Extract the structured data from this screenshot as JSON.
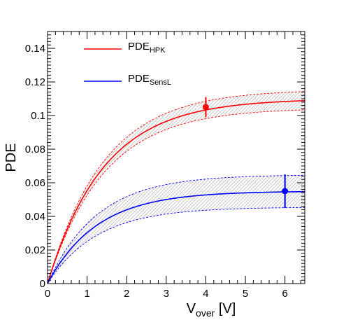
{
  "chart_data": {
    "type": "line",
    "xlabel": {
      "main": "V",
      "sub": "over",
      "unit": " [V]"
    },
    "ylabel": "PDE",
    "xlim": [
      0,
      6.5
    ],
    "ylim": [
      0,
      0.15
    ],
    "x_ticks": [
      0,
      1,
      2,
      3,
      4,
      5,
      6
    ],
    "x_tick_labels": [
      "0",
      "1",
      "2",
      "3",
      "4",
      "5",
      "6"
    ],
    "y_ticks": [
      0,
      0.02,
      0.04,
      0.06,
      0.08,
      0.1,
      0.12,
      0.14
    ],
    "y_tick_labels": [
      "0",
      "0.02",
      "0.04",
      "0.06",
      "0.08",
      "0.1",
      "0.12",
      "0.14"
    ],
    "grid": false,
    "legend": {
      "position": "top-left"
    },
    "series": [
      {
        "name": {
          "main": "PDE",
          "sub": "HPK"
        },
        "color": "#ff0000",
        "model": "exponential saturation",
        "plateau": 0.11,
        "plateau_lower": 0.1045,
        "plateau_upper": 0.1155,
        "rate": 0.7,
        "measured": {
          "x": 4,
          "y": 0.105,
          "err": 0.006
        }
      },
      {
        "name": {
          "main": "PDE",
          "sub": "SensL"
        },
        "color": "#0000ff",
        "model": "exponential saturation",
        "plateau": 0.055,
        "plateau_lower": 0.0455,
        "plateau_upper": 0.0648,
        "rate": 0.8,
        "measured": {
          "x": 6,
          "y": 0.055,
          "err": 0.01
        }
      }
    ]
  }
}
